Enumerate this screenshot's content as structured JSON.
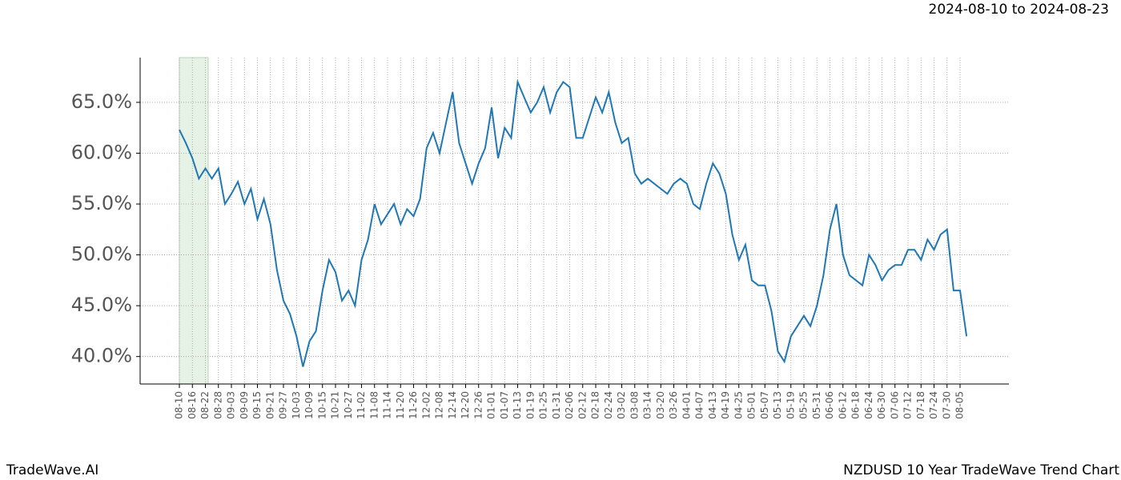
{
  "chart_data": {
    "type": "line",
    "title": "NZDUSD 10 Year TradeWave Trend Chart",
    "subtitle": "2024-08-10 to 2024-08-23",
    "source": "TradeWave.AI",
    "categories": [
      "08-10",
      null,
      "08-16",
      null,
      "08-22",
      null,
      "08-28",
      null,
      "09-03",
      null,
      "09-09",
      null,
      "09-15",
      null,
      "09-21",
      null,
      "09-27",
      null,
      "10-03",
      null,
      "10-09",
      null,
      "10-15",
      null,
      "10-21",
      null,
      "10-27",
      null,
      "11-02",
      null,
      "11-08",
      null,
      "11-14",
      null,
      "11-20",
      null,
      "11-26",
      null,
      "12-02",
      null,
      "12-08",
      null,
      "12-14",
      null,
      "12-20",
      null,
      "12-26",
      null,
      "01-01",
      null,
      "01-07",
      null,
      "01-13",
      null,
      "01-19",
      null,
      "01-25",
      null,
      "01-31",
      null,
      "02-06",
      null,
      "02-12",
      null,
      "02-18",
      null,
      "02-24",
      null,
      "03-02",
      null,
      "03-08",
      null,
      "03-14",
      null,
      "03-20",
      null,
      "03-26",
      null,
      "04-01",
      null,
      "04-07",
      null,
      "04-13",
      null,
      "04-19",
      null,
      "04-25",
      null,
      "05-01",
      null,
      "05-07",
      null,
      "05-13",
      null,
      "05-19",
      null,
      "05-25",
      null,
      "05-31",
      null,
      "06-06",
      null,
      "06-12",
      null,
      "06-18",
      null,
      "06-24",
      null,
      "06-30",
      null,
      "07-06",
      null,
      "07-12",
      null,
      "07-18",
      null,
      "07-24",
      null,
      "07-30",
      null,
      "08-05",
      null
    ],
    "values": [
      62.3,
      61.0,
      59.5,
      57.5,
      58.5,
      57.5,
      58.5,
      55.0,
      56.0,
      57.2,
      55.0,
      56.5,
      53.5,
      55.5,
      53.0,
      48.5,
      45.5,
      44.2,
      42.0,
      39.0,
      41.5,
      42.5,
      46.5,
      49.5,
      48.3,
      45.5,
      46.5,
      45.0,
      49.5,
      51.5,
      55.0,
      53.0,
      54.0,
      55.0,
      53.0,
      54.5,
      53.8,
      55.5,
      60.5,
      62.0,
      60.0,
      63.0,
      66.0,
      61.0,
      59.0,
      57.0,
      59.0,
      60.5,
      64.5,
      59.5,
      62.5,
      61.5,
      67.0,
      65.5,
      64.0,
      65.0,
      66.5,
      64.0,
      66.0,
      67.0,
      66.5,
      61.5,
      61.5,
      63.5,
      65.5,
      64.0,
      66.0,
      63.0,
      61.0,
      61.5,
      58.0,
      57.0,
      57.5,
      57.0,
      56.5,
      56.0,
      57.0,
      57.5,
      57.0,
      55.0,
      54.5,
      57.0,
      59.0,
      58.0,
      56.0,
      52.0,
      49.5,
      51.0,
      47.5,
      47.0,
      47.0,
      44.5,
      40.5,
      39.5,
      42.0,
      43.0,
      44.0,
      43.0,
      45.0,
      48.0,
      52.5,
      55.0,
      50.0,
      48.0,
      47.5,
      47.0,
      50.0,
      49.0,
      47.5,
      48.5,
      49.0,
      49.0,
      50.5,
      50.5,
      49.5,
      51.5,
      50.5,
      52.0,
      52.5,
      46.5,
      46.5,
      42.0
    ],
    "color": "#1f77b4",
    "ylim": [
      37.3,
      69.4
    ],
    "yticks": [
      {
        "value": 40,
        "label": "40.0%"
      },
      {
        "value": 45,
        "label": "45.0%"
      },
      {
        "value": 50,
        "label": "50.0%"
      },
      {
        "value": 55,
        "label": "55.0%"
      },
      {
        "value": 60,
        "label": "60.0%"
      },
      {
        "value": 65,
        "label": "65.0%"
      }
    ],
    "grid": true
  }
}
